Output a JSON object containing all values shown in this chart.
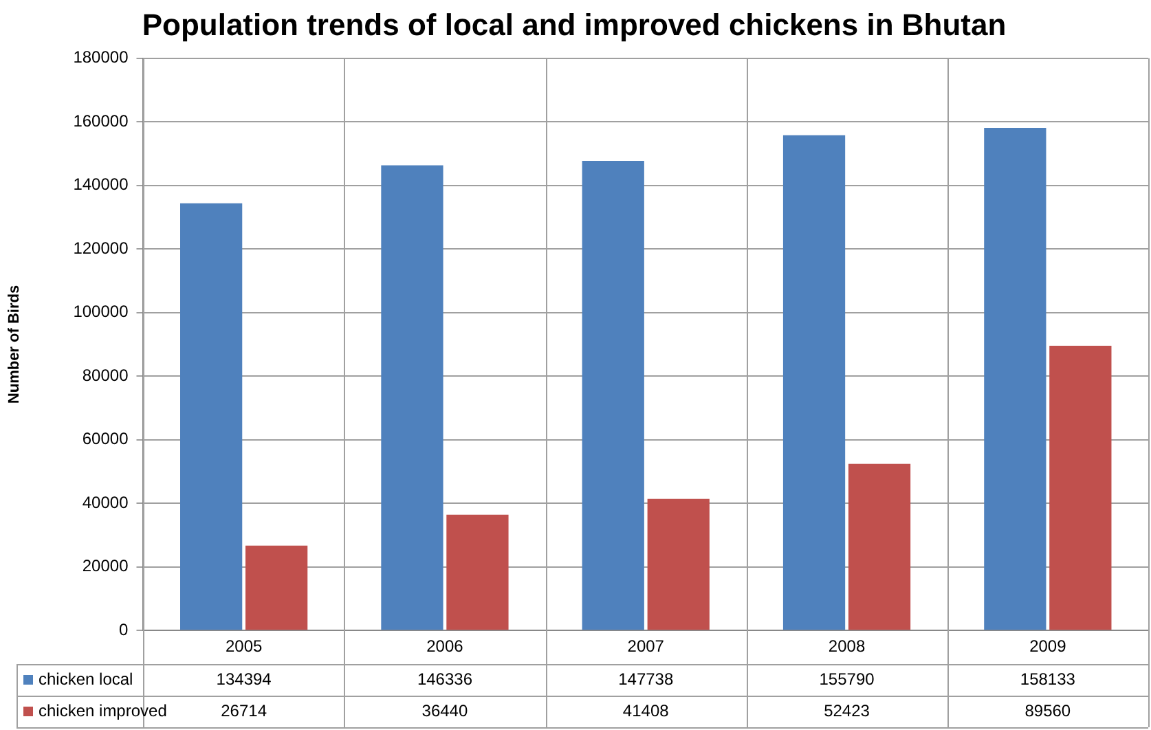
{
  "chart_data": {
    "type": "bar",
    "title": "Population trends of local and improved chickens in Bhutan",
    "ylabel": "Number of Birds",
    "categories": [
      "2005",
      "2006",
      "2007",
      "2008",
      "2009"
    ],
    "series": [
      {
        "name": "chicken local",
        "color": "#4f81bd",
        "values": [
          134394,
          146336,
          147738,
          155790,
          158133
        ]
      },
      {
        "name": "chicken improved",
        "color": "#c0504d",
        "values": [
          26714,
          36440,
          41408,
          52423,
          89560
        ]
      }
    ],
    "ylim": [
      0,
      180000
    ],
    "yticks": [
      0,
      20000,
      40000,
      60000,
      80000,
      100000,
      120000,
      140000,
      160000,
      180000
    ],
    "grid": "y",
    "legend": "bottom",
    "data_labels": true
  }
}
